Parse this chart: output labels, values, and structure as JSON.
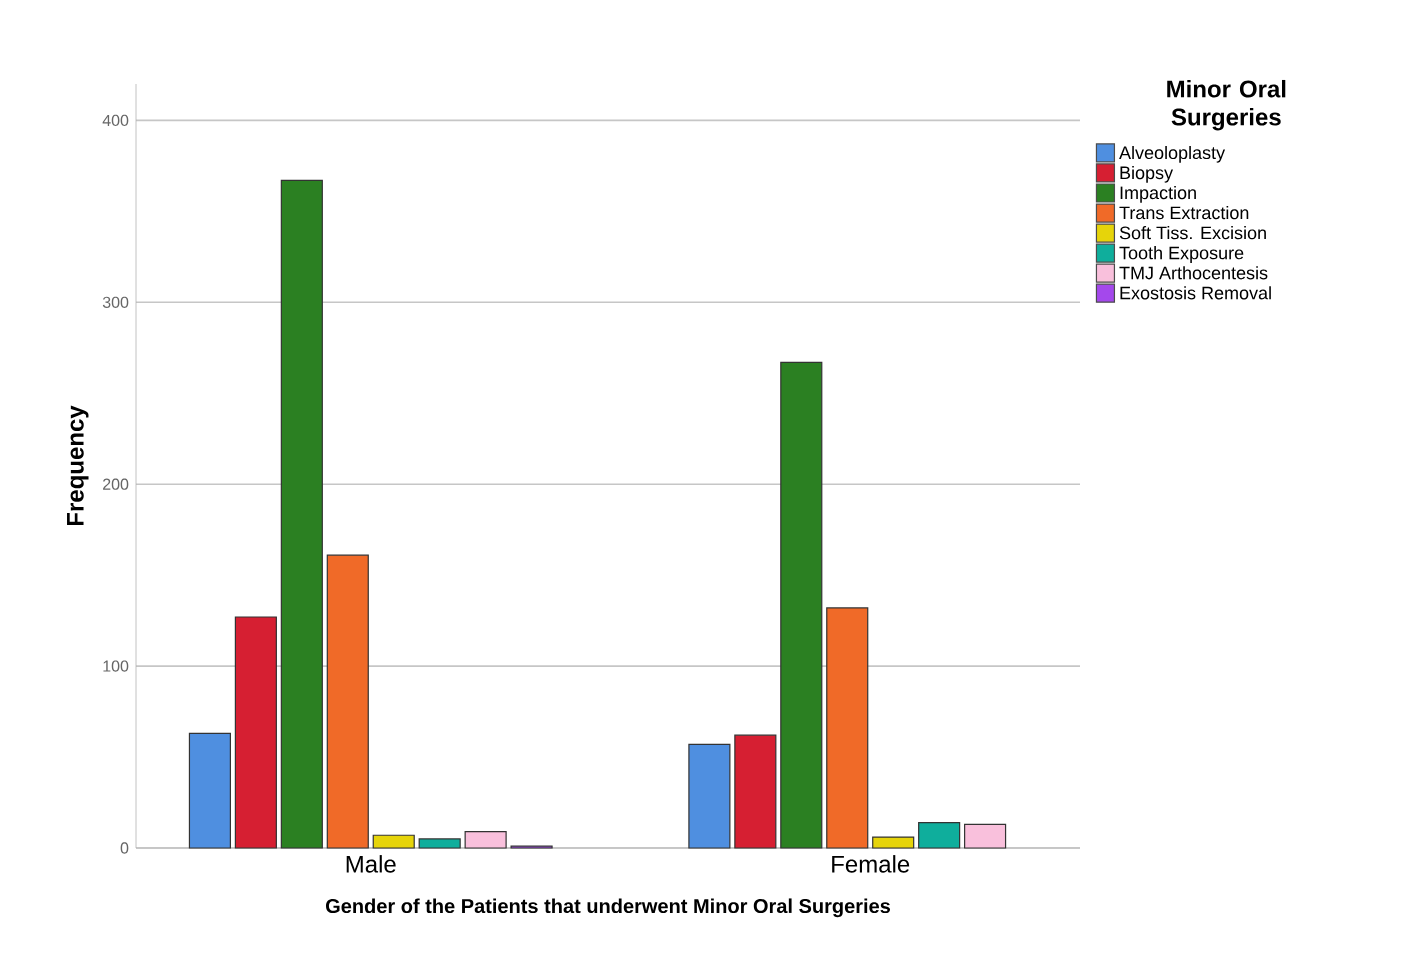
{
  "chart_data": {
    "type": "bar",
    "xlabel": "Gender of the Patients that underwent Minor Oral Surgeries",
    "ylabel": "Frequency",
    "legend_title": "Minor Oral Surgeries",
    "categories": [
      "Male",
      "Female"
    ],
    "series": [
      {
        "name": "Alveoloplasty",
        "color": "#4f8fe0",
        "values": [
          63,
          57
        ]
      },
      {
        "name": "Biopsy",
        "color": "#d61f32",
        "values": [
          127,
          62
        ]
      },
      {
        "name": "Impaction",
        "color": "#2b8022",
        "values": [
          367,
          267
        ]
      },
      {
        "name": "Trans Extraction",
        "color": "#f06a28",
        "values": [
          161,
          132
        ]
      },
      {
        "name": "Soft Tiss. Excision",
        "color": "#e6d40a",
        "values": [
          7,
          6
        ]
      },
      {
        "name": "Tooth Exposure",
        "color": "#0fae9c",
        "values": [
          5,
          14
        ]
      },
      {
        "name": "TMJ Arthocentesis",
        "color": "#f9c0dc",
        "values": [
          9,
          13
        ]
      },
      {
        "name": "Exostosis Removal",
        "color": "#a448ec",
        "values": [
          1,
          null
        ]
      }
    ],
    "ylim": [
      0,
      420
    ],
    "yticks": [
      0,
      100,
      200,
      300,
      400
    ],
    "grid": "y",
    "legend": "top right"
  }
}
